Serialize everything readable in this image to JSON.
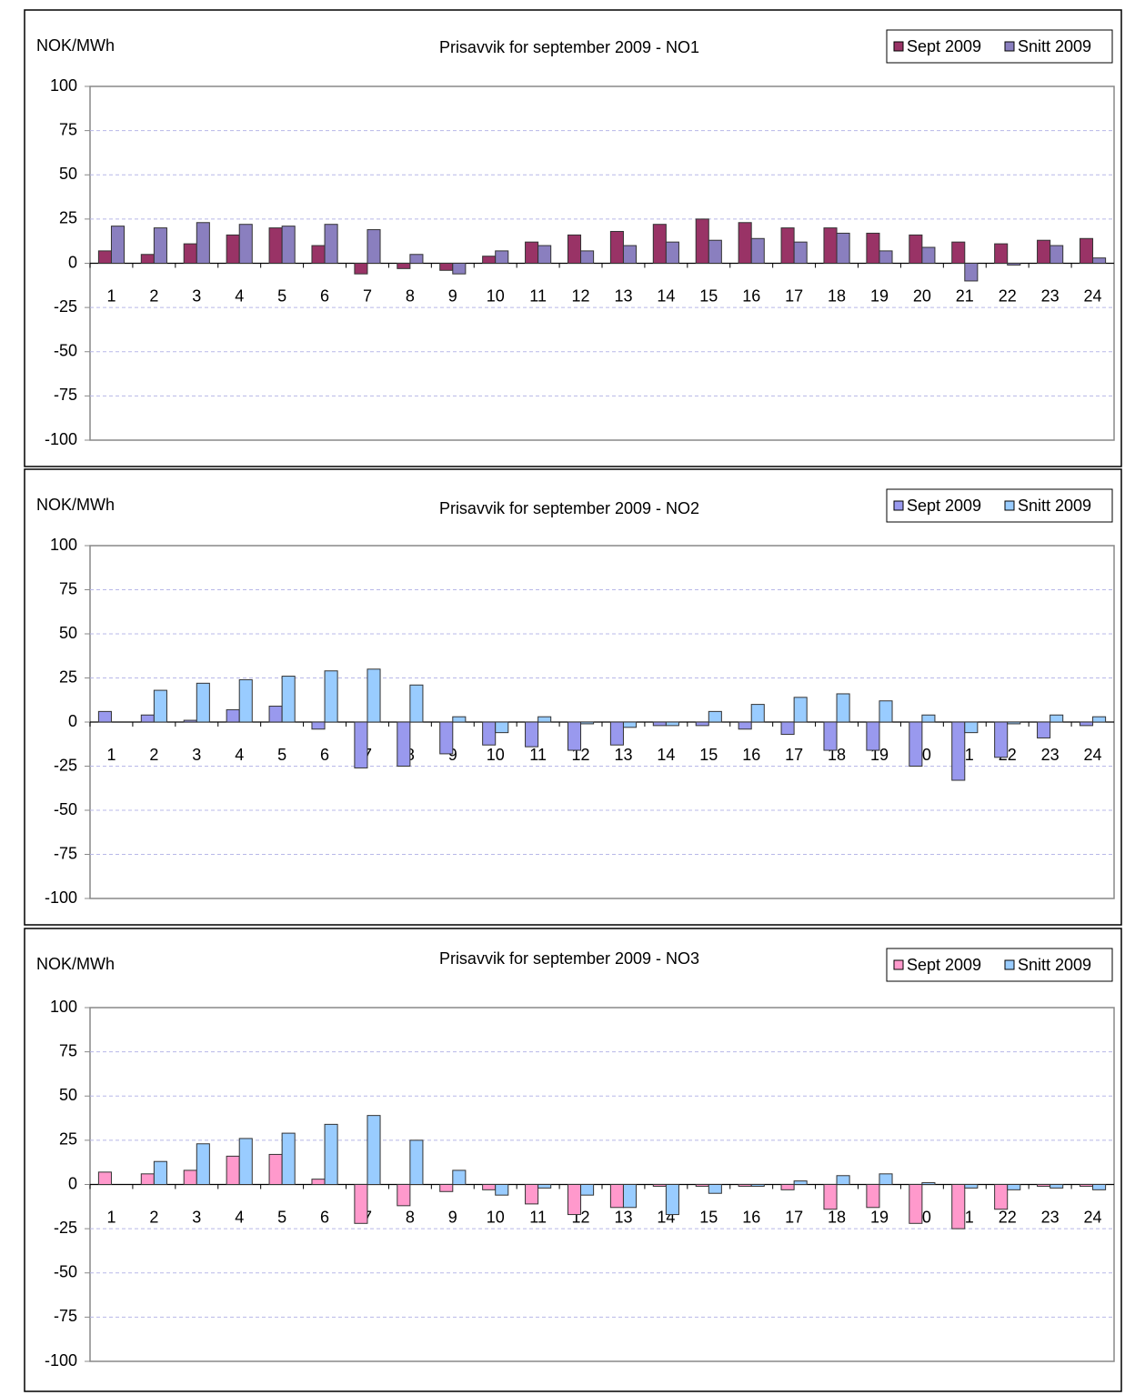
{
  "chart_data": [
    {
      "type": "bar",
      "title": "Prisavvik for  september 2009 - NO1",
      "y_label": "NOK/MWh",
      "categories": [
        "1",
        "2",
        "3",
        "4",
        "5",
        "6",
        "7",
        "8",
        "9",
        "10",
        "11",
        "12",
        "13",
        "14",
        "15",
        "16",
        "17",
        "18",
        "19",
        "20",
        "21",
        "22",
        "23",
        "24"
      ],
      "series": [
        {
          "name": "Sept 2009",
          "color": "#993366",
          "values": [
            7,
            5,
            11,
            16,
            20,
            10,
            -6,
            -3,
            -4,
            4,
            12,
            16,
            18,
            22,
            25,
            23,
            20,
            20,
            17,
            16,
            12,
            11,
            13,
            14
          ]
        },
        {
          "name": "Snitt 2009",
          "color": "#8a7fbf",
          "values": [
            21,
            20,
            23,
            22,
            21,
            22,
            19,
            5,
            -6,
            7,
            10,
            7,
            10,
            12,
            13,
            14,
            12,
            17,
            7,
            9,
            -10,
            -1,
            10,
            3
          ]
        }
      ],
      "ylim": [
        -100,
        100
      ],
      "yticks": [
        -100,
        -75,
        -50,
        -25,
        0,
        25,
        50,
        75,
        100
      ],
      "grid": true,
      "legend": "top-right"
    },
    {
      "type": "bar",
      "title": "Prisavvik for  september 2009 - NO2",
      "y_label": "NOK/MWh",
      "categories": [
        "1",
        "2",
        "3",
        "4",
        "5",
        "6",
        "7",
        "8",
        "9",
        "10",
        "11",
        "12",
        "13",
        "14",
        "15",
        "16",
        "17",
        "18",
        "19",
        "20",
        "21",
        "22",
        "23",
        "24"
      ],
      "series": [
        {
          "name": "Sept 2009",
          "color": "#9999ee",
          "values": [
            6,
            4,
            1,
            7,
            9,
            -4,
            -26,
            -25,
            -18,
            -13,
            -14,
            -16,
            -13,
            -2,
            -2,
            -4,
            -7,
            -16,
            -16,
            -25,
            -33,
            -20,
            -9,
            -2
          ]
        },
        {
          "name": "Snitt 2009",
          "color": "#99ccff",
          "values": [
            0,
            18,
            22,
            24,
            26,
            29,
            30,
            21,
            3,
            -6,
            3,
            -1,
            -3,
            -2,
            6,
            10,
            14,
            16,
            12,
            4,
            -6,
            -1,
            4,
            3
          ]
        }
      ],
      "ylim": [
        -100,
        100
      ],
      "yticks": [
        -100,
        -75,
        -50,
        -25,
        0,
        25,
        50,
        75,
        100
      ],
      "grid": true,
      "legend": "top-right"
    },
    {
      "type": "bar",
      "title": "Prisavvik for september 2009 - NO3",
      "y_label": "NOK/MWh",
      "categories": [
        "1",
        "2",
        "3",
        "4",
        "5",
        "6",
        "7",
        "8",
        "9",
        "10",
        "11",
        "12",
        "13",
        "14",
        "15",
        "16",
        "17",
        "18",
        "19",
        "20",
        "21",
        "22",
        "23",
        "24"
      ],
      "series": [
        {
          "name": "Sept 2009",
          "color": "#ff99cc",
          "values": [
            7,
            6,
            8,
            16,
            17,
            3,
            -22,
            -12,
            -4,
            -3,
            -11,
            -17,
            -13,
            -1,
            -1,
            -1,
            -3,
            -14,
            -13,
            -22,
            -25,
            -14,
            -1,
            -1
          ]
        },
        {
          "name": "Snitt 2009",
          "color": "#99ccff",
          "values": [
            0,
            13,
            23,
            26,
            29,
            34,
            39,
            25,
            8,
            -6,
            -2,
            -6,
            -13,
            -17,
            -5,
            -1,
            2,
            5,
            6,
            1,
            -2,
            -3,
            -2,
            -3
          ]
        }
      ],
      "ylim": [
        -100,
        100
      ],
      "yticks": [
        -100,
        -75,
        -50,
        -25,
        0,
        25,
        50,
        75,
        100
      ],
      "grid": true,
      "legend": "top-right"
    }
  ]
}
